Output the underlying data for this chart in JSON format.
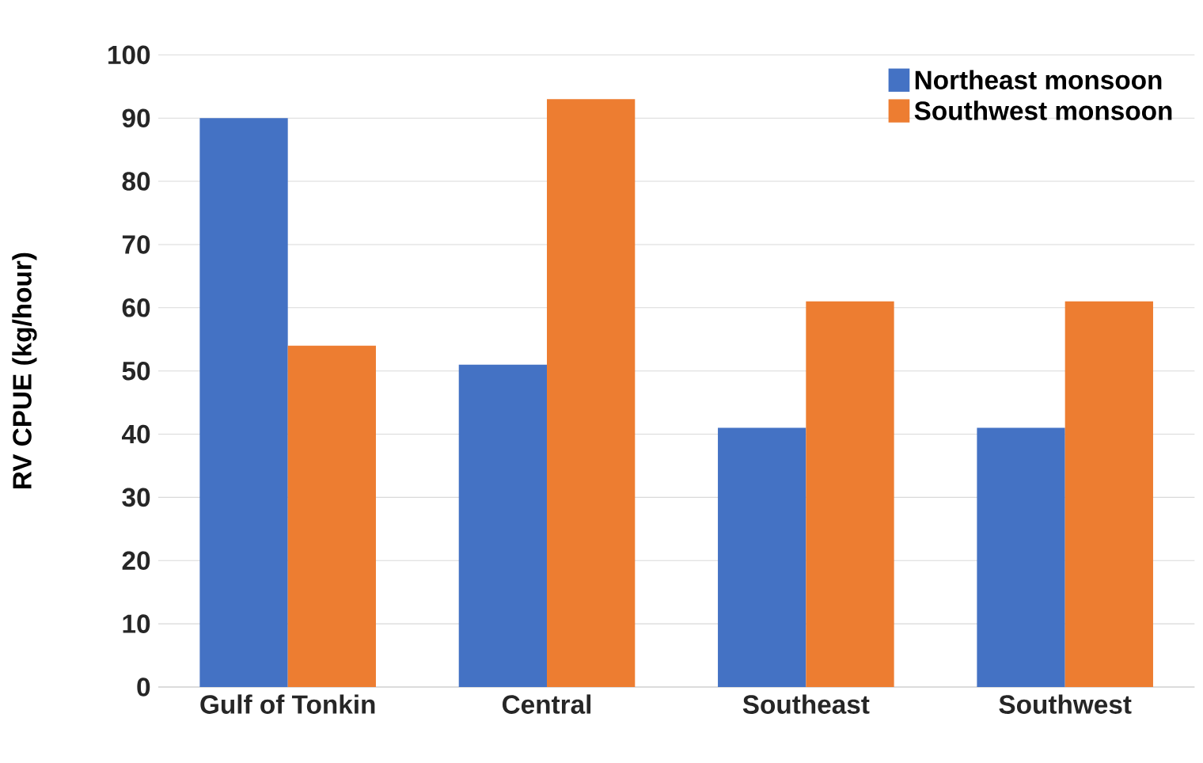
{
  "chart_data": {
    "type": "bar",
    "ylabel": "RV CPUE (kg/hour)",
    "categories": [
      "Gulf of Tonkin",
      "Central",
      "Southeast",
      "Southwest"
    ],
    "series": [
      {
        "name": "Northeast monsoon",
        "color": "#4472c4",
        "values": [
          90,
          51,
          41,
          41
        ]
      },
      {
        "name": "Southwest monsoon",
        "color": "#ed7d31",
        "values": [
          54,
          93,
          61,
          61
        ]
      }
    ],
    "ylim": [
      0,
      100
    ],
    "yticks": [
      0,
      10,
      20,
      30,
      40,
      50,
      60,
      70,
      80,
      90,
      100
    ],
    "grid": "y",
    "legend": "top right"
  }
}
